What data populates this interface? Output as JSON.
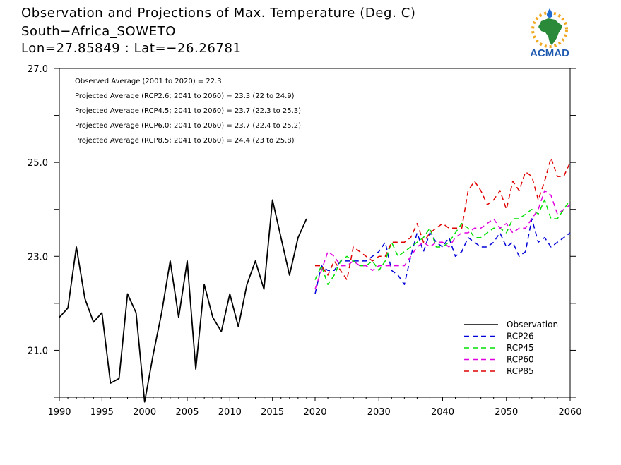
{
  "header": {
    "title_lines": [
      "Observation and Projections of Max. Temperature (Deg. C)",
      "South−Africa_SOWETO",
      "Lon=27.85849 : Lat=−26.26781"
    ],
    "logo_text": "ACMAD"
  },
  "chart_data": {
    "type": "line",
    "ylim": [
      20.0,
      27.0
    ],
    "y_ticks": [
      21,
      23,
      25,
      27
    ],
    "y_tick_labels": [
      "21.0",
      "23.0",
      "25.0",
      "27.0"
    ],
    "x_ticks_left": [
      1990,
      1995,
      2000,
      2005,
      2010,
      2015,
      2020
    ],
    "x_ticks_right": [
      2030,
      2040,
      2050,
      2060
    ],
    "x_range_left": [
      1990,
      2020
    ],
    "x_range_right": [
      2020,
      2060
    ],
    "annotations": [
      "Observed Average (2001 to 2020) = 22.3",
      "Projected Average (RCP2.6; 2041 to 2060) = 23.3 (22 to 24.9)",
      "Projected Average (RCP4.5; 2041 to 2060) = 23.7 (22.3 to 25.3)",
      "Projected Average (RCP6.0; 2041 to 2060) = 23.7 (22.4 to 25.2)",
      "Projected Average (RCP8.5; 2041 to 2060) = 24.4 (23 to 25.8)"
    ],
    "legend_position": "bottom-right",
    "series": [
      {
        "name": "Observation",
        "color": "#000000",
        "dashed": false,
        "segment": "left",
        "x": [
          1990,
          1991,
          1992,
          1993,
          1994,
          1995,
          1996,
          1997,
          1998,
          1999,
          2000,
          2001,
          2002,
          2003,
          2004,
          2005,
          2006,
          2007,
          2008,
          2009,
          2010,
          2011,
          2012,
          2013,
          2014,
          2015,
          2016,
          2017,
          2018,
          2019
        ],
        "values": [
          21.7,
          21.9,
          23.2,
          22.1,
          21.6,
          21.8,
          20.3,
          20.4,
          22.2,
          21.8,
          19.9,
          20.9,
          21.8,
          22.9,
          21.7,
          22.9,
          20.6,
          22.4,
          21.7,
          21.4,
          22.2,
          21.5,
          22.4,
          22.9,
          22.3,
          24.2,
          23.4,
          22.6,
          23.4,
          23.8
        ]
      },
      {
        "name": "RCP26",
        "color": "#0000d8",
        "dashed": true,
        "segment": "right",
        "x": [
          2020,
          2021,
          2022,
          2023,
          2024,
          2025,
          2026,
          2027,
          2028,
          2029,
          2030,
          2031,
          2032,
          2033,
          2034,
          2035,
          2036,
          2037,
          2038,
          2039,
          2040,
          2041,
          2042,
          2043,
          2044,
          2045,
          2046,
          2047,
          2048,
          2049,
          2050,
          2051,
          2052,
          2053,
          2054,
          2055,
          2056,
          2057,
          2058,
          2059,
          2060
        ],
        "values": [
          22.2,
          22.8,
          22.7,
          22.7,
          22.9,
          22.9,
          22.9,
          22.9,
          22.9,
          23.0,
          23.1,
          23.3,
          22.7,
          22.6,
          22.4,
          23.0,
          23.5,
          23.1,
          23.5,
          23.3,
          23.2,
          23.4,
          23.0,
          23.1,
          23.4,
          23.3,
          23.2,
          23.2,
          23.3,
          23.5,
          23.2,
          23.3,
          23.0,
          23.1,
          23.8,
          23.3,
          23.4,
          23.2,
          23.3,
          23.4,
          23.5
        ]
      },
      {
        "name": "RCP45",
        "color": "#00e000",
        "dashed": true,
        "segment": "right",
        "x": [
          2020,
          2021,
          2022,
          2023,
          2024,
          2025,
          2026,
          2027,
          2028,
          2029,
          2030,
          2031,
          2032,
          2033,
          2034,
          2035,
          2036,
          2037,
          2038,
          2039,
          2040,
          2041,
          2042,
          2043,
          2044,
          2045,
          2046,
          2047,
          2048,
          2049,
          2050,
          2051,
          2052,
          2053,
          2054,
          2055,
          2056,
          2057,
          2058,
          2059,
          2060
        ],
        "values": [
          22.5,
          22.8,
          22.4,
          22.6,
          22.9,
          23.0,
          22.9,
          22.8,
          22.8,
          22.9,
          22.7,
          22.9,
          23.3,
          23.0,
          23.1,
          23.2,
          23.3,
          23.4,
          23.6,
          23.2,
          23.2,
          23.3,
          23.5,
          23.7,
          23.6,
          23.4,
          23.4,
          23.5,
          23.6,
          23.6,
          23.5,
          23.8,
          23.8,
          23.9,
          24.0,
          23.9,
          24.2,
          23.8,
          23.8,
          24.0,
          24.2
        ]
      },
      {
        "name": "RCP60",
        "color": "#e000e0",
        "dashed": true,
        "segment": "right",
        "x": [
          2020,
          2021,
          2022,
          2023,
          2024,
          2025,
          2026,
          2027,
          2028,
          2029,
          2030,
          2031,
          2032,
          2033,
          2034,
          2035,
          2036,
          2037,
          2038,
          2039,
          2040,
          2041,
          2042,
          2043,
          2044,
          2045,
          2046,
          2047,
          2048,
          2049,
          2050,
          2051,
          2052,
          2053,
          2054,
          2055,
          2056,
          2057,
          2058,
          2059,
          2060
        ],
        "values": [
          22.3,
          22.7,
          23.1,
          23.0,
          22.8,
          22.8,
          22.9,
          22.8,
          22.8,
          22.7,
          22.8,
          22.8,
          22.8,
          22.8,
          22.8,
          23.0,
          23.2,
          23.3,
          23.2,
          23.3,
          23.3,
          23.2,
          23.4,
          23.5,
          23.5,
          23.6,
          23.6,
          23.7,
          23.8,
          23.6,
          23.7,
          23.5,
          23.6,
          23.6,
          23.8,
          24.0,
          24.4,
          24.3,
          23.9,
          24.0,
          24.1
        ]
      },
      {
        "name": "RCP85",
        "color": "#e00000",
        "dashed": true,
        "segment": "right",
        "x": [
          2020,
          2021,
          2022,
          2023,
          2024,
          2025,
          2026,
          2027,
          2028,
          2029,
          2030,
          2031,
          2032,
          2033,
          2034,
          2035,
          2036,
          2037,
          2038,
          2039,
          2040,
          2041,
          2042,
          2043,
          2044,
          2045,
          2046,
          2047,
          2048,
          2049,
          2050,
          2051,
          2052,
          2053,
          2054,
          2055,
          2056,
          2057,
          2058,
          2059,
          2060
        ],
        "values": [
          22.8,
          22.8,
          22.6,
          22.9,
          22.7,
          22.5,
          23.2,
          23.1,
          23.0,
          22.9,
          23.0,
          23.0,
          23.3,
          23.3,
          23.3,
          23.4,
          23.7,
          23.3,
          23.5,
          23.6,
          23.7,
          23.6,
          23.6,
          23.6,
          24.4,
          24.6,
          24.4,
          24.1,
          24.2,
          24.4,
          24.0,
          24.6,
          24.4,
          24.8,
          24.7,
          24.2,
          24.6,
          25.1,
          24.7,
          24.7,
          25.0
        ]
      }
    ]
  }
}
